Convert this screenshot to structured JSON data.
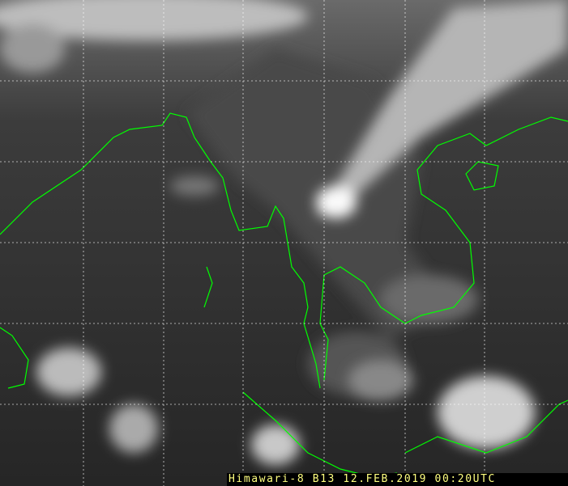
{
  "image": {
    "type": "infrared satellite image",
    "caption": "Himawari-8 B13 12.FEB.2019 00:20UTC",
    "coastline_color": "#00ff00",
    "grid_color": "#ffffff",
    "caption_color": "#ffff80"
  }
}
